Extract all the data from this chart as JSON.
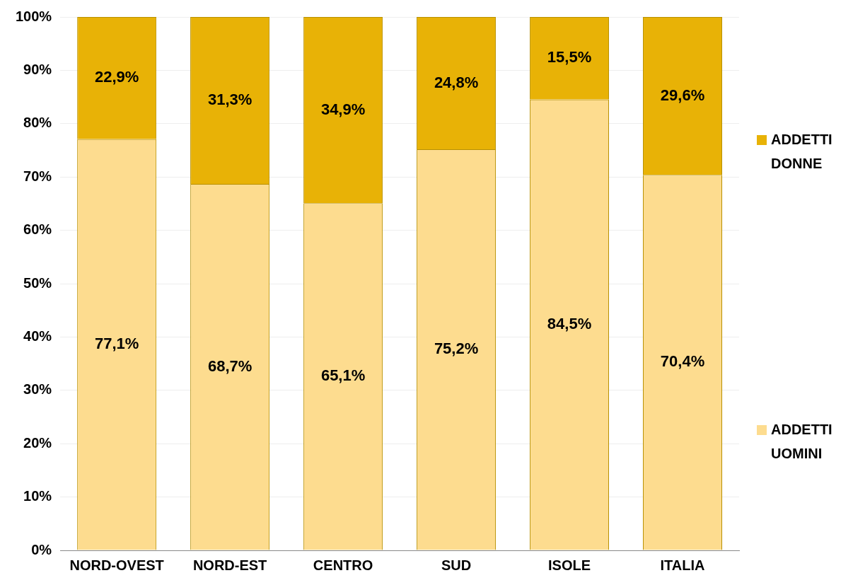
{
  "chart_data": {
    "type": "bar",
    "stacked": true,
    "categories": [
      "NORD-OVEST",
      "NORD-EST",
      "CENTRO",
      "SUD",
      "ISOLE",
      "ITALIA"
    ],
    "series": [
      {
        "name": "ADDETTI UOMINI",
        "color": "#fddc8f",
        "values": [
          77.1,
          68.7,
          65.1,
          75.2,
          84.5,
          70.4
        ],
        "value_labels": [
          "77,1%",
          "68,7%",
          "65,1%",
          "75,2%",
          "84,5%",
          "70,4%"
        ]
      },
      {
        "name": "ADDETTI DONNE",
        "color": "#e8b206",
        "values": [
          22.9,
          31.3,
          34.9,
          24.8,
          15.5,
          29.6
        ],
        "value_labels": [
          "22,9%",
          "31,3%",
          "34,9%",
          "24,8%",
          "15,5%",
          "29,6%"
        ]
      }
    ],
    "ylim": [
      0,
      100
    ],
    "yticks": [
      {
        "value": 0,
        "label": "0%"
      },
      {
        "value": 10,
        "label": "10%"
      },
      {
        "value": 20,
        "label": "20%"
      },
      {
        "value": 30,
        "label": "30%"
      },
      {
        "value": 40,
        "label": "40%"
      },
      {
        "value": 50,
        "label": "50%"
      },
      {
        "value": 60,
        "label": "60%"
      },
      {
        "value": 70,
        "label": "70%"
      },
      {
        "value": 80,
        "label": "80%"
      },
      {
        "value": 90,
        "label": "90%"
      },
      {
        "value": 100,
        "label": "100%"
      }
    ],
    "grid": "y",
    "legend": "right"
  }
}
